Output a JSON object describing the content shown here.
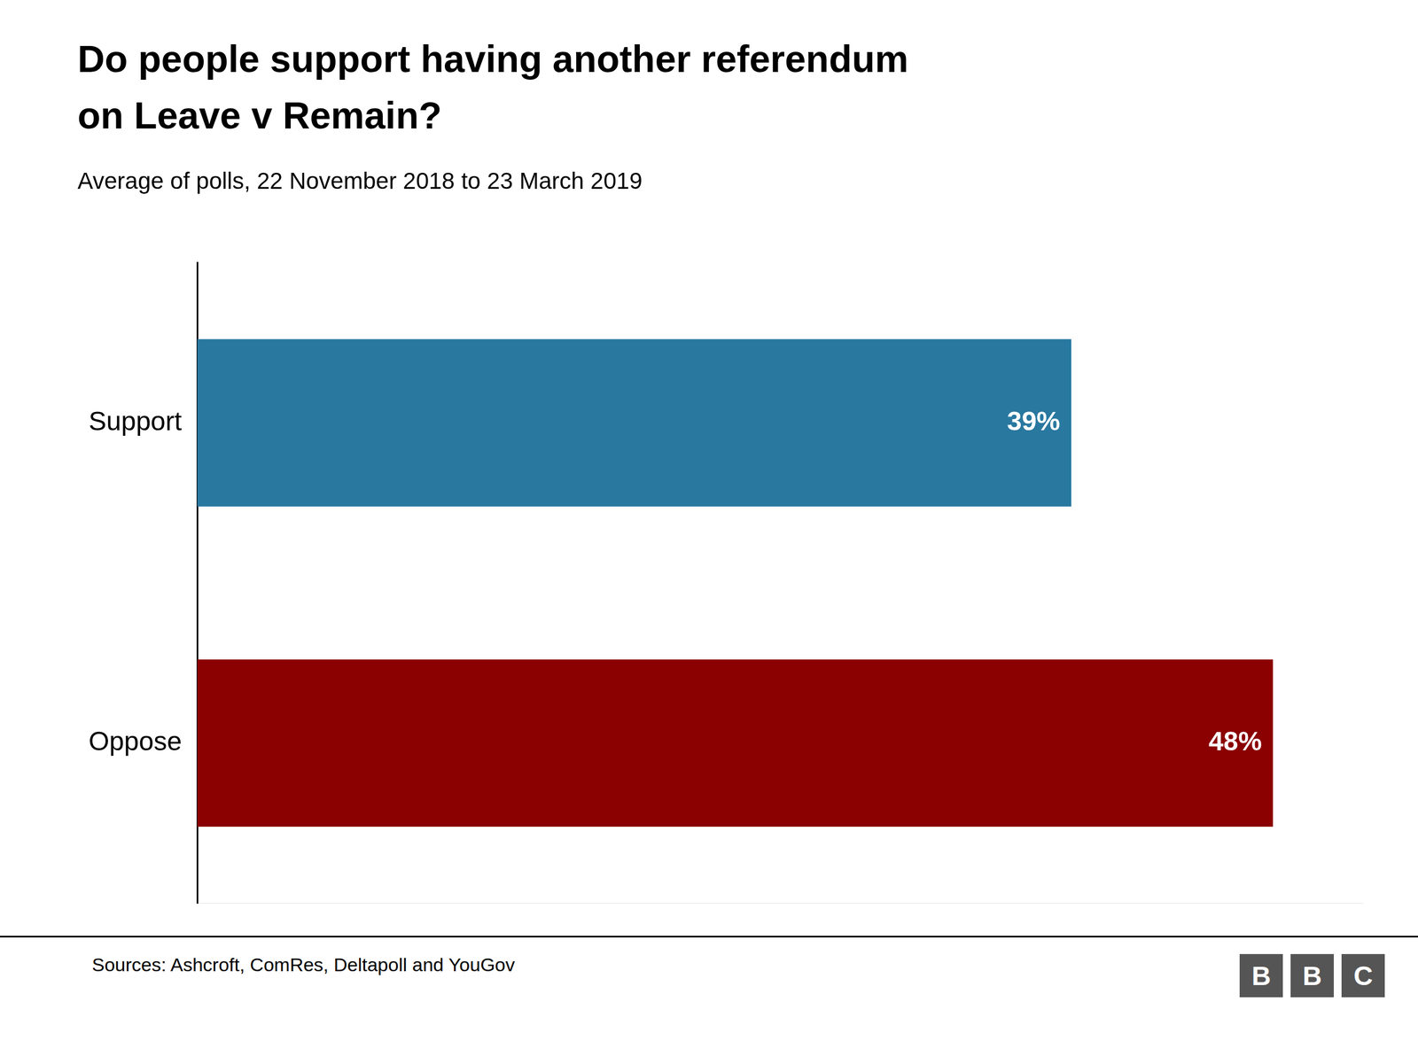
{
  "chart_data": {
    "type": "bar",
    "orientation": "horizontal",
    "title": [
      "Do people support having another referendum",
      "on Leave v Remain?"
    ],
    "subtitle": "Average of polls, 22 November 2018 to 23 March 2019",
    "categories": [
      "Support",
      "Oppose"
    ],
    "values": [
      39,
      48
    ],
    "value_labels": [
      "39%",
      "48%"
    ],
    "colors": [
      "#2878a0",
      "#8b0000"
    ],
    "xlim": [
      0,
      52
    ],
    "grid": false,
    "tick_labels": "y",
    "data_labels": true,
    "annotations": [
      "Sources: Ashcroft, ComRes, Deltapoll and YouGov",
      "BBC"
    ]
  }
}
